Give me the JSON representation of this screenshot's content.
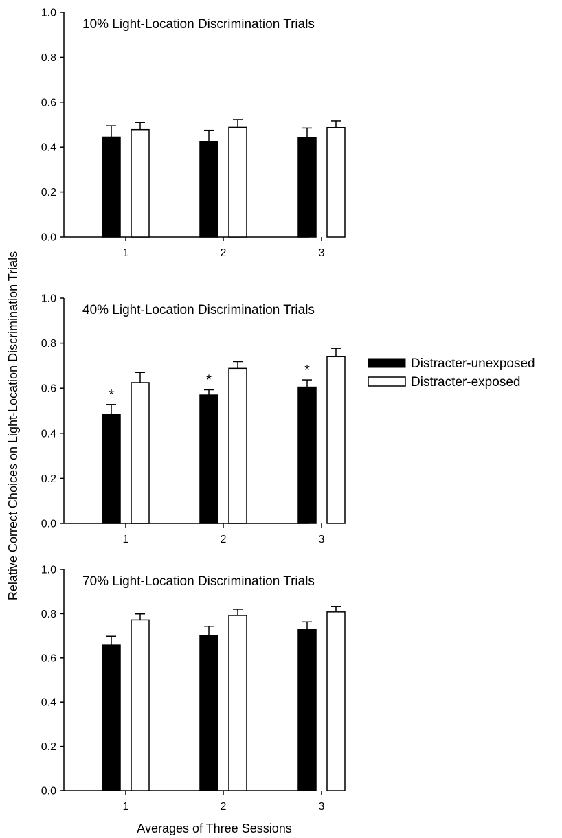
{
  "ylabel": "Relative Correct Choices on Light-Location Discrimination Trials",
  "xlabel": "Averages of Three Sessions",
  "legend": {
    "placement": "right",
    "entries": [
      {
        "label": "Distracter-unexposed",
        "color": "#000000"
      },
      {
        "label": "Distracter-exposed",
        "color": "#ffffff"
      }
    ]
  },
  "chart_data": [
    {
      "type": "bar",
      "title": "10% Light-Location Discrimination Trials",
      "categories": [
        "1",
        "2",
        "3"
      ],
      "ylim": [
        0,
        1.0
      ],
      "yticks": [
        "0.0",
        "0.2",
        "0.4",
        "0.6",
        "0.8",
        "1.0"
      ],
      "grid": false,
      "series": [
        {
          "name": "Distracter-unexposed",
          "color": "#000000",
          "values": [
            0.445,
            0.425,
            0.443
          ],
          "errors": [
            0.05,
            0.05,
            0.042
          ]
        },
        {
          "name": "Distracter-exposed",
          "color": "#ffffff",
          "values": [
            0.478,
            0.488,
            0.487
          ],
          "errors": [
            0.032,
            0.035,
            0.03
          ]
        }
      ],
      "annotations": []
    },
    {
      "type": "bar",
      "title": "40% Light-Location Discrimination Trials",
      "categories": [
        "1",
        "2",
        "3"
      ],
      "ylim": [
        0,
        1.0
      ],
      "yticks": [
        "0.0",
        "0.2",
        "0.4",
        "0.6",
        "0.8",
        "1.0"
      ],
      "grid": false,
      "series": [
        {
          "name": "Distracter-unexposed",
          "color": "#000000",
          "values": [
            0.483,
            0.57,
            0.605
          ],
          "errors": [
            0.045,
            0.023,
            0.032
          ]
        },
        {
          "name": "Distracter-exposed",
          "color": "#ffffff",
          "values": [
            0.625,
            0.688,
            0.74
          ],
          "errors": [
            0.045,
            0.03,
            0.037
          ]
        }
      ],
      "annotations": [
        {
          "text": "*",
          "category": "1"
        },
        {
          "text": "*",
          "category": "2"
        },
        {
          "text": "*",
          "category": "3"
        }
      ]
    },
    {
      "type": "bar",
      "title": "70% Light-Location Discrimination Trials",
      "categories": [
        "1",
        "2",
        "3"
      ],
      "ylim": [
        0,
        1.0
      ],
      "yticks": [
        "0.0",
        "0.2",
        "0.4",
        "0.6",
        "0.8",
        "1.0"
      ],
      "grid": false,
      "series": [
        {
          "name": "Distracter-unexposed",
          "color": "#000000",
          "values": [
            0.658,
            0.7,
            0.728
          ],
          "errors": [
            0.04,
            0.043,
            0.035
          ]
        },
        {
          "name": "Distracter-exposed",
          "color": "#ffffff",
          "values": [
            0.772,
            0.792,
            0.808
          ],
          "errors": [
            0.027,
            0.028,
            0.025
          ]
        }
      ],
      "annotations": []
    }
  ]
}
